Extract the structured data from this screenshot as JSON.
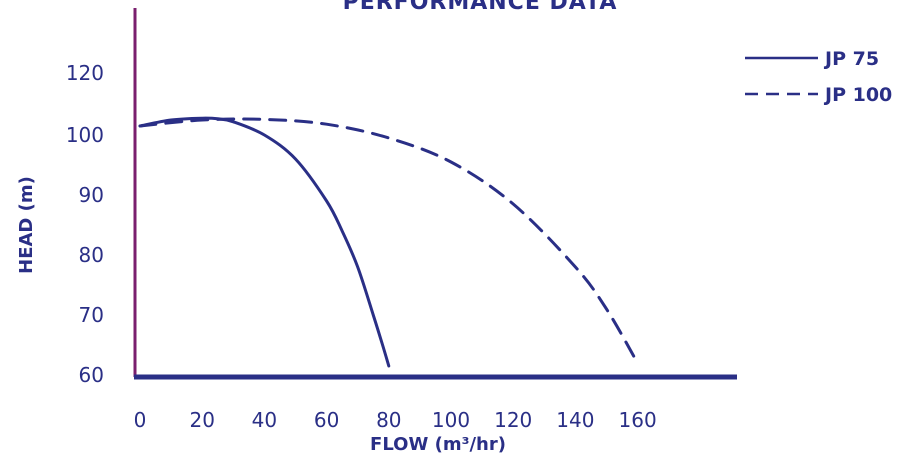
{
  "colors": {
    "ink": "#2a2f86",
    "axis_left": "#7a1f6e"
  },
  "chart_data": {
    "type": "line",
    "title": "PERFORMANCE DATA",
    "xlabel": "FLOW (m³/hr)",
    "ylabel": "HEAD (m)",
    "xlim": [
      0,
      180
    ],
    "ylim": [
      60,
      132
    ],
    "x_ticks": [
      "0",
      "20",
      "40",
      "60",
      "80",
      "100",
      "120",
      "140",
      "160"
    ],
    "y_ticks": [
      "60",
      "70",
      "80",
      "90",
      "100",
      "120"
    ],
    "legend_position": "top-right",
    "series": [
      {
        "name": "JP 75",
        "style": "solid",
        "x": [
          0,
          10,
          20,
          25,
          30,
          40,
          50,
          60,
          65,
          70,
          75,
          78,
          80
        ],
        "y": [
          101.5,
          102.5,
          102.8,
          102.7,
          102.2,
          100.0,
          96.0,
          89.0,
          84.0,
          78.0,
          70.0,
          65.0,
          61.5
        ]
      },
      {
        "name": "JP 100",
        "style": "dashed",
        "x": [
          0,
          20,
          40,
          60,
          80,
          100,
          120,
          140,
          150,
          160
        ],
        "y": [
          101.5,
          102.5,
          102.6,
          101.8,
          99.5,
          95.5,
          88.5,
          78.0,
          71.0,
          62.0
        ]
      }
    ]
  }
}
